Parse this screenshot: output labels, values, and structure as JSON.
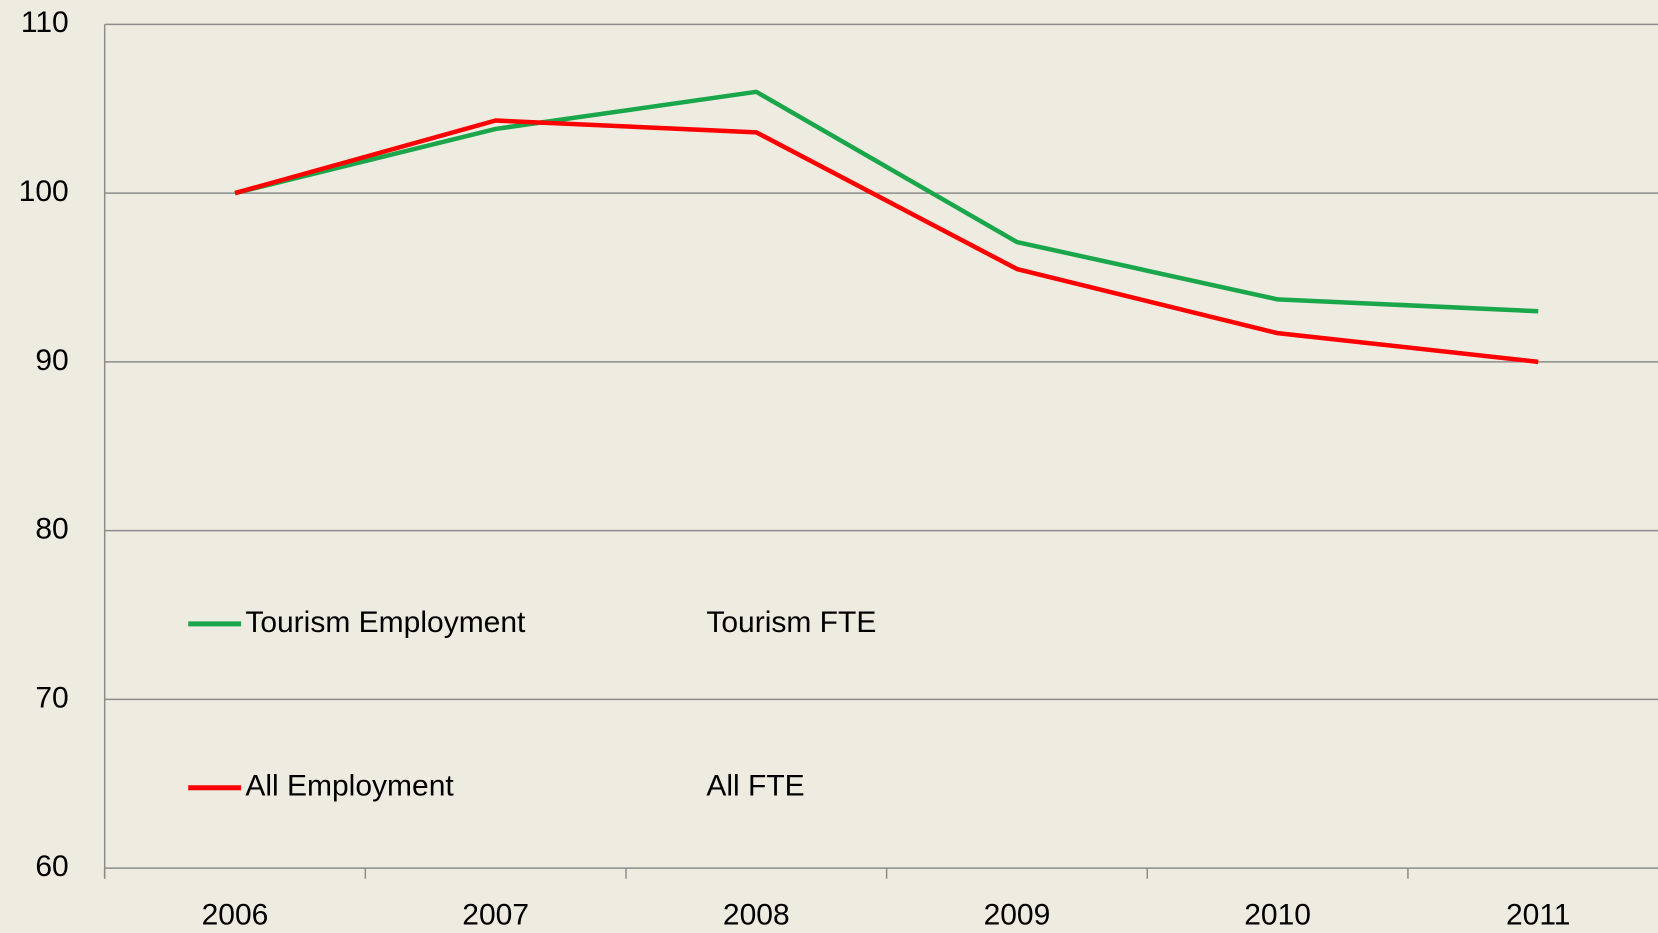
{
  "chart_data": {
    "type": "line",
    "categories": [
      "2006",
      "2007",
      "2008",
      "2009",
      "2010",
      "2011"
    ],
    "series": [
      {
        "name": "Tourism Employment",
        "color": "#1aa64a",
        "values": [
          100,
          103.8,
          106,
          97.1,
          93.7,
          93.0
        ]
      },
      {
        "name": "All Employment",
        "color": "#ff0000",
        "values": [
          100,
          104.3,
          103.6,
          95.5,
          91.7,
          90.0
        ]
      },
      {
        "name": "Tourism FTE",
        "values": [
          null,
          null,
          null,
          null,
          null,
          null
        ]
      },
      {
        "name": "All FTE",
        "values": [
          null,
          null,
          null,
          null,
          null,
          null
        ]
      }
    ],
    "ylim": [
      60,
      110
    ],
    "yticks": [
      60,
      70,
      80,
      90,
      100,
      110
    ],
    "grid": true
  }
}
